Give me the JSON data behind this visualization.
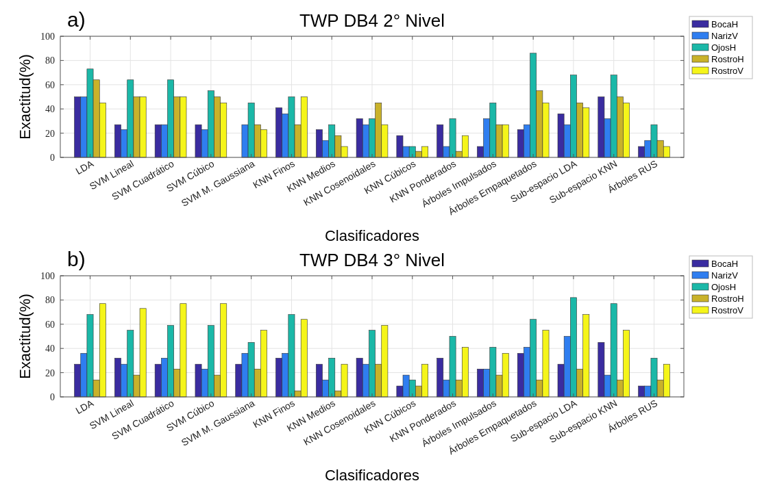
{
  "chart_data": [
    {
      "type": "bar",
      "title": "TWP DB4 2° Nivel",
      "xlabel": "Clasificadores",
      "ylabel": "Exactitud(%)",
      "annotations": [
        "a)"
      ],
      "categories": [
        "LDA",
        "SVM Lineal",
        "SVM Cuadrático",
        "SVM Cúbico",
        "SVM M. Gaussiana",
        "KNN Finos",
        "KNN Medios",
        "KNN Cosenoidales",
        "KNN Cúbicos",
        "KNN Ponderados",
        "Árboles Impulsados",
        "Árboles Empaquetados",
        "Sub-espacio LDA",
        "Sub-espacio KNN",
        "Árboles RUS"
      ],
      "series": [
        {
          "name": "BocaH",
          "color": "#3a2ca0",
          "values": [
            50,
            27,
            27,
            27,
            0,
            41,
            23,
            32,
            18,
            27,
            9,
            23,
            36,
            50,
            9
          ]
        },
        {
          "name": "NarizV",
          "color": "#2f7ef0",
          "values": [
            50,
            23,
            27,
            23,
            27,
            36,
            14,
            27,
            9,
            9,
            32,
            27,
            27,
            32,
            14
          ]
        },
        {
          "name": "OjosH",
          "color": "#1bb8a8",
          "values": [
            73,
            64,
            64,
            55,
            45,
            50,
            27,
            32,
            9,
            32,
            45,
            86,
            68,
            68,
            27
          ]
        },
        {
          "name": "RostroH",
          "color": "#c9b22a",
          "values": [
            64,
            50,
            50,
            50,
            27,
            27,
            18,
            45,
            5,
            5,
            27,
            55,
            45,
            50,
            14
          ]
        },
        {
          "name": "RostroV",
          "color": "#f5f51a",
          "values": [
            45,
            50,
            50,
            45,
            23,
            50,
            9,
            27,
            9,
            18,
            27,
            45,
            41,
            45,
            9
          ]
        }
      ],
      "ylim": [
        0,
        100
      ],
      "yticks": [
        0,
        20,
        40,
        60,
        80,
        100
      ],
      "grid": true,
      "legend": "top right"
    },
    {
      "type": "bar",
      "title": "TWP DB4 3° Nivel",
      "xlabel": "Clasificadores",
      "ylabel": "Exactitud(%)",
      "annotations": [
        "b)"
      ],
      "categories": [
        "LDA",
        "SVM Lineal",
        "SVM Cuadrático",
        "SVM Cúbico",
        "SVM M. Gaussiana",
        "KNN Finos",
        "KNN Medios",
        "KNN Cosenoidales",
        "KNN Cúbicos",
        "KNN Ponderados",
        "Árboles Impulsados",
        "Árboles Empaquetados",
        "Sub-espacio LDA",
        "Sub-espacio KNN",
        "Árboles RUS"
      ],
      "series": [
        {
          "name": "BocaH",
          "color": "#3a2ca0",
          "values": [
            27,
            32,
            27,
            27,
            27,
            32,
            27,
            32,
            9,
            32,
            23,
            36,
            27,
            45,
            9
          ]
        },
        {
          "name": "NarizV",
          "color": "#2f7ef0",
          "values": [
            36,
            27,
            32,
            23,
            36,
            36,
            14,
            27,
            18,
            14,
            23,
            41,
            50,
            18,
            9
          ]
        },
        {
          "name": "OjosH",
          "color": "#1bb8a8",
          "values": [
            68,
            55,
            59,
            59,
            45,
            68,
            32,
            55,
            14,
            50,
            41,
            64,
            82,
            77,
            32
          ]
        },
        {
          "name": "RostroH",
          "color": "#c9b22a",
          "values": [
            14,
            18,
            23,
            18,
            23,
            5,
            5,
            27,
            9,
            14,
            18,
            14,
            23,
            14,
            14
          ]
        },
        {
          "name": "RostroV",
          "color": "#f5f51a",
          "values": [
            77,
            73,
            77,
            77,
            55,
            64,
            27,
            59,
            27,
            41,
            36,
            55,
            68,
            55,
            27
          ]
        }
      ],
      "ylim": [
        0,
        100
      ],
      "yticks": [
        0,
        20,
        40,
        60,
        80,
        100
      ],
      "grid": true,
      "legend": "top right"
    }
  ]
}
